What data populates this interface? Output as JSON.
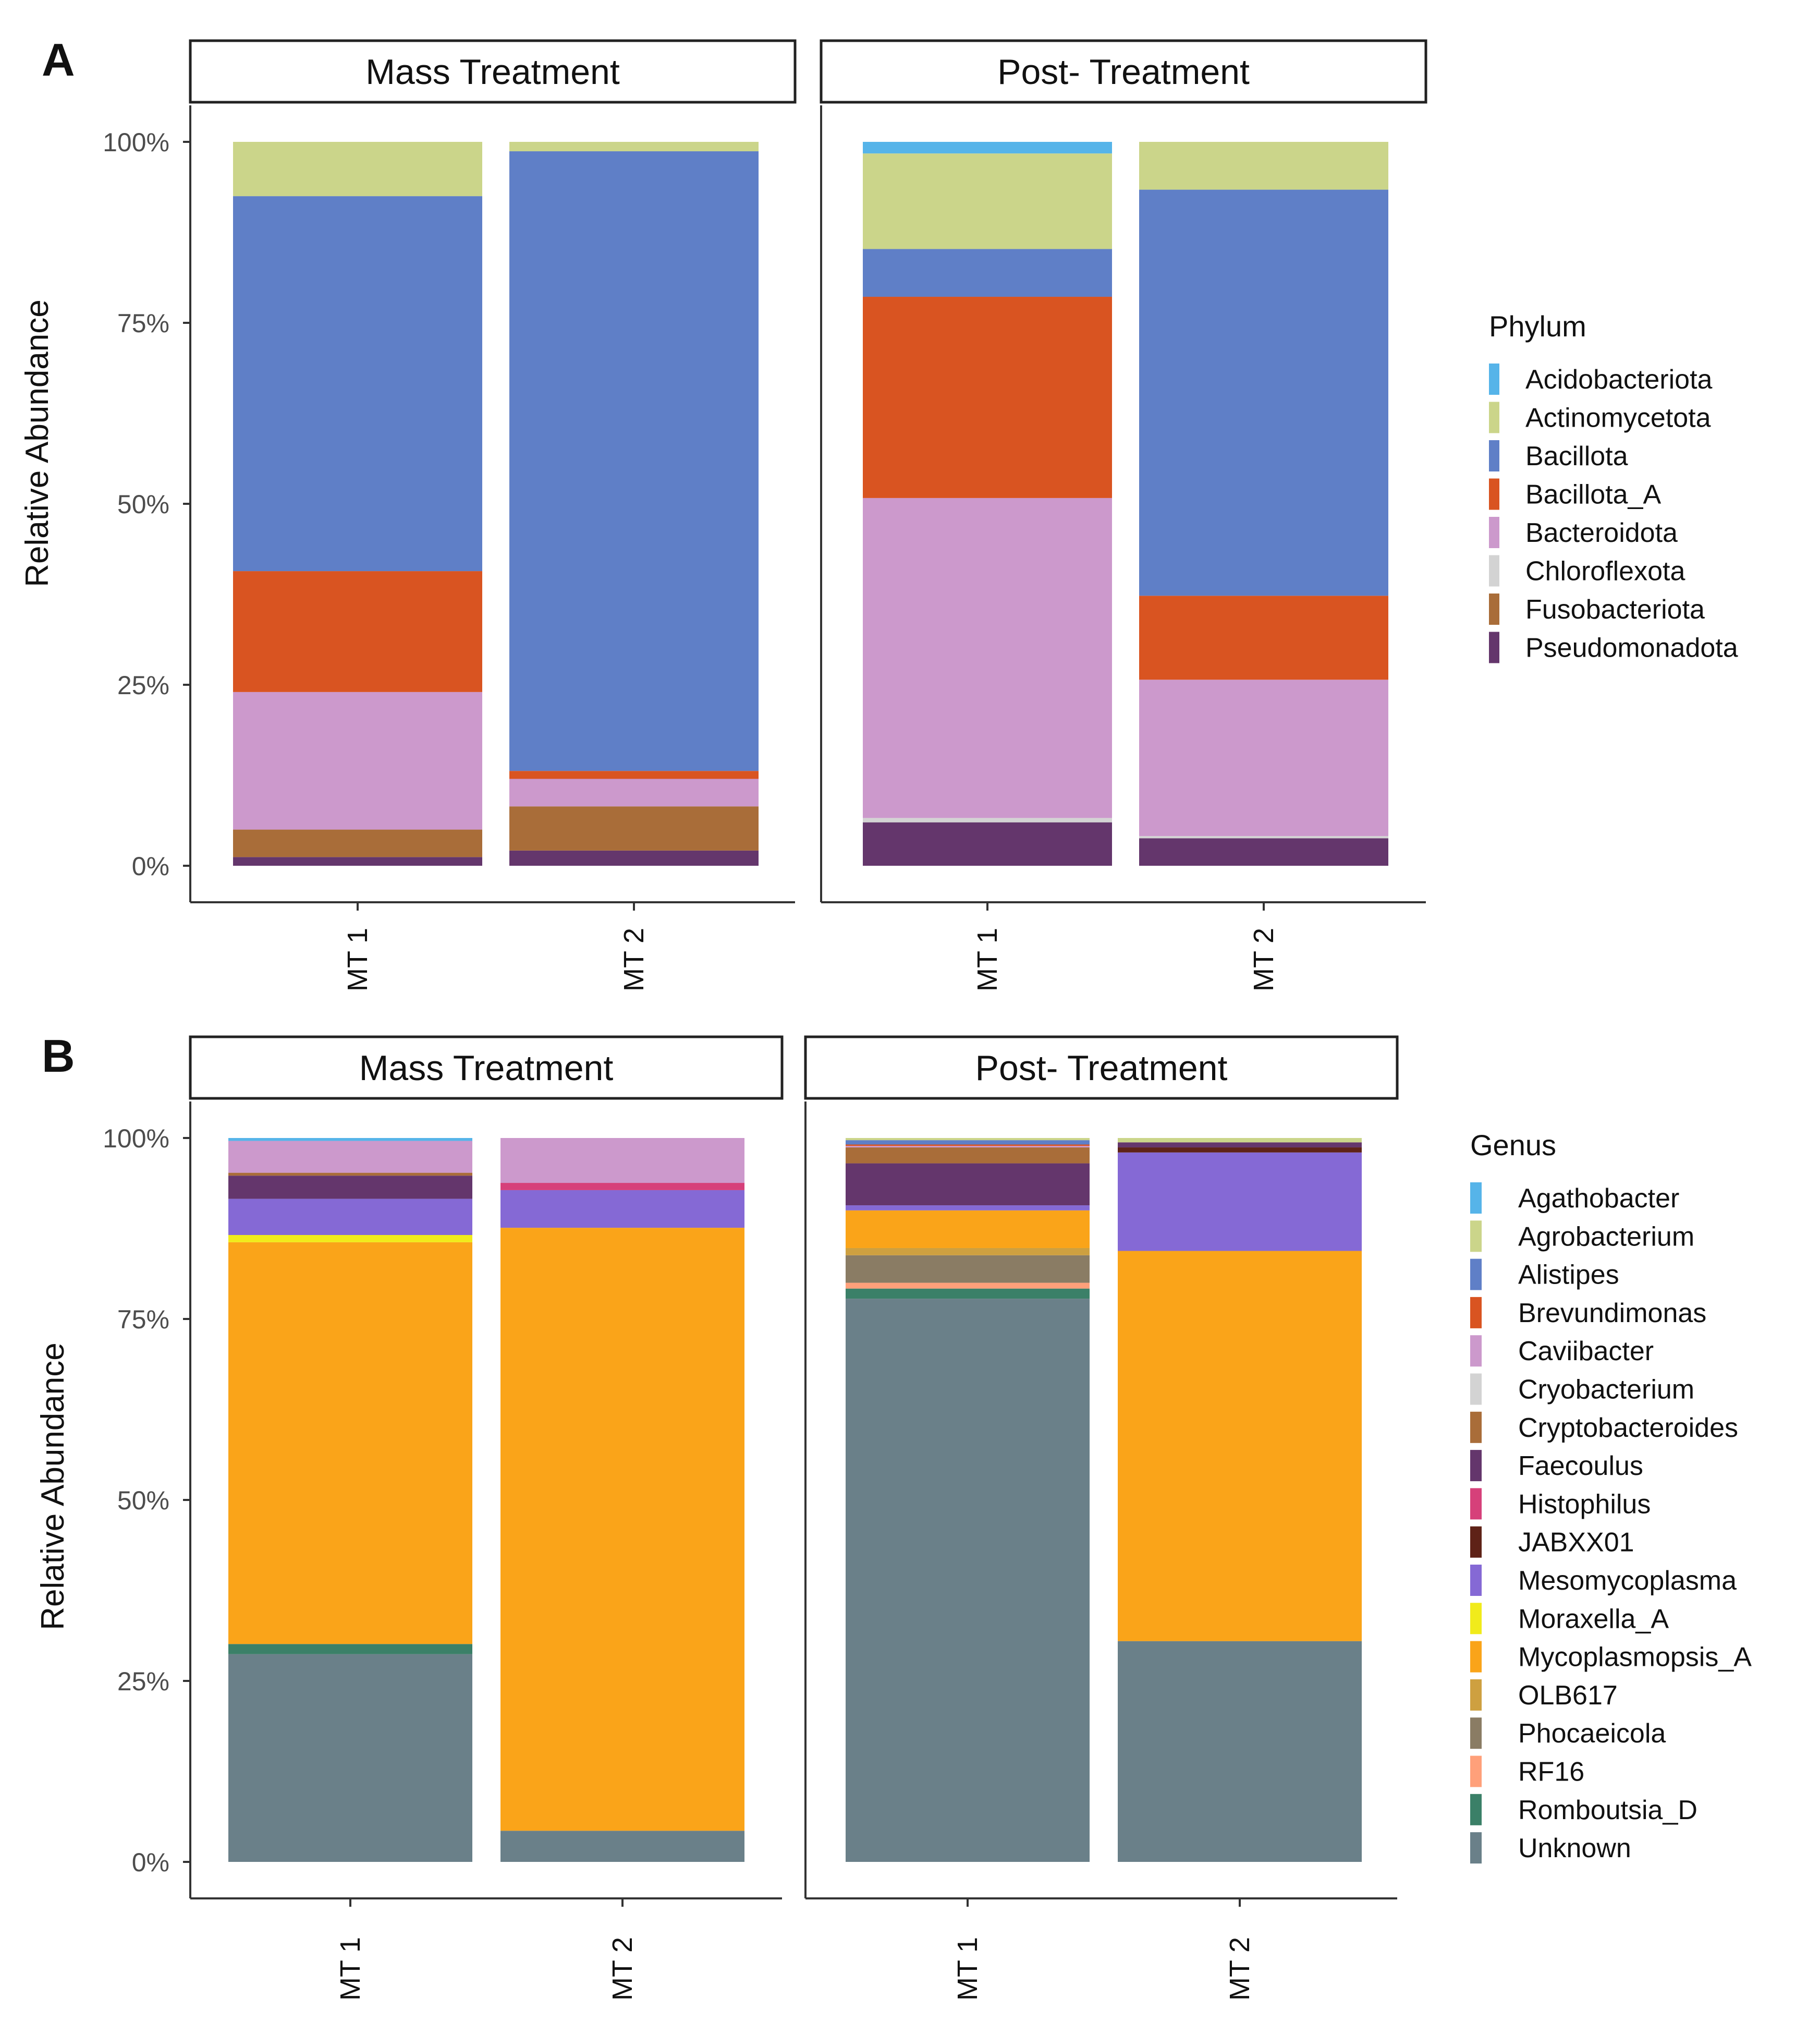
{
  "chart_data": [
    {
      "type": "bar",
      "stacked": true,
      "panel_label": "A",
      "ylabel": "Relative Abundance",
      "y_ticks": [
        "0%",
        "25%",
        "50%",
        "75%",
        "100%"
      ],
      "ylim": [
        0,
        100
      ],
      "legend_title": "Phylum",
      "legend_position": "right",
      "legend": [
        {
          "name": "Acidobacteriota",
          "color": "#56B4E9"
        },
        {
          "name": "Actinomycetota",
          "color": "#CBD58A"
        },
        {
          "name": "Bacillota",
          "color": "#5F7FC7"
        },
        {
          "name": "Bacillota_A",
          "color": "#D95421"
        },
        {
          "name": "Bacteroidota",
          "color": "#CC99CC"
        },
        {
          "name": "Chloroflexota",
          "color": "#D3D3D3"
        },
        {
          "name": "Fusobacteriota",
          "color": "#A96D39"
        },
        {
          "name": "Pseudomonadota",
          "color": "#64366C"
        }
      ],
      "facets": [
        {
          "label": "Mass Treatment",
          "categories": [
            "MT 1",
            "MT 2"
          ],
          "stacks": [
            {
              "Acidobacteriota": 0,
              "Actinomycetota": 7.5,
              "Bacillota": 51.8,
              "Bacillota_A": 16.7,
              "Bacteroidota": 19,
              "Chloroflexota": 0,
              "Fusobacteriota": 3.8,
              "Pseudomonadota": 1.2
            },
            {
              "Acidobacteriota": 0,
              "Actinomycetota": 1.3,
              "Bacillota": 85.6,
              "Bacillota_A": 1.1,
              "Bacteroidota": 3.8,
              "Chloroflexota": 0,
              "Fusobacteriota": 6.1,
              "Pseudomonadota": 2.1
            }
          ]
        },
        {
          "label": "Post- Treatment",
          "categories": [
            "MT 1",
            "MT 2"
          ],
          "stacks": [
            {
              "Acidobacteriota": 1.6,
              "Actinomycetota": 13.2,
              "Bacillota": 6.6,
              "Bacillota_A": 27.8,
              "Bacteroidota": 44.2,
              "Chloroflexota": 0.6,
              "Fusobacteriota": 0,
              "Pseudomonadota": 6
            },
            {
              "Acidobacteriota": 0,
              "Actinomycetota": 6.6,
              "Bacillota": 56.1,
              "Bacillota_A": 11.6,
              "Bacteroidota": 21.6,
              "Chloroflexota": 0.3,
              "Fusobacteriota": 0,
              "Pseudomonadota": 3.8
            }
          ]
        }
      ]
    },
    {
      "type": "bar",
      "stacked": true,
      "panel_label": "B",
      "ylabel": "Relative Abundance",
      "y_ticks": [
        "0%",
        "25%",
        "50%",
        "75%",
        "100%"
      ],
      "ylim": [
        0,
        100
      ],
      "legend_title": "Genus",
      "legend_position": "right",
      "legend": [
        {
          "name": "Agathobacter",
          "color": "#56B4E9"
        },
        {
          "name": "Agrobacterium",
          "color": "#CBD58A"
        },
        {
          "name": "Alistipes",
          "color": "#5F7FC7"
        },
        {
          "name": "Brevundimonas",
          "color": "#D95421"
        },
        {
          "name": "Caviibacter",
          "color": "#CC99CC"
        },
        {
          "name": "Cryobacterium",
          "color": "#D3D3D3"
        },
        {
          "name": "Cryptobacteroides",
          "color": "#A96D39"
        },
        {
          "name": "Faecoulus",
          "color": "#64366C"
        },
        {
          "name": "Histophilus",
          "color": "#D6407A"
        },
        {
          "name": "JABXX01",
          "color": "#5E2217"
        },
        {
          "name": "Mesomycoplasma",
          "color": "#8569D5"
        },
        {
          "name": "Moraxella_A",
          "color": "#F1EB1B"
        },
        {
          "name": "Mycoplasmopsis_A",
          "color": "#FAA419"
        },
        {
          "name": "OLB617",
          "color": "#CEA040"
        },
        {
          "name": "Phocaeicola",
          "color": "#8A7C64"
        },
        {
          "name": "RF16",
          "color": "#FFA07A"
        },
        {
          "name": "Romboutsia_D",
          "color": "#3B8068"
        },
        {
          "name": "Unknown",
          "color": "#6A8089"
        }
      ],
      "facets": [
        {
          "label": "Mass Treatment",
          "categories": [
            "MT 1",
            "MT 2"
          ],
          "stacks": [
            {
              "Agathobacter": 0.4,
              "Agrobacterium": 0,
              "Alistipes": 0,
              "Brevundimonas": 0,
              "Caviibacter": 4.4,
              "Cryobacterium": 0,
              "Cryptobacteroides": 0.4,
              "Faecoulus": 3.2,
              "Histophilus": 0,
              "JABXX01": 0,
              "Mesomycoplasma": 5,
              "Moraxella_A": 1,
              "Mycoplasmopsis_A": 55.5,
              "OLB617": 0,
              "Phocaeicola": 0,
              "RF16": 0,
              "Romboutsia_D": 1.4,
              "Unknown": 28.7
            },
            {
              "Agathobacter": 0,
              "Agrobacterium": 0,
              "Alistipes": 0,
              "Brevundimonas": 0,
              "Caviibacter": 6.2,
              "Cryobacterium": 0,
              "Cryptobacteroides": 0,
              "Faecoulus": 0,
              "Histophilus": 1,
              "JABXX01": 0,
              "Mesomycoplasma": 5.2,
              "Moraxella_A": 0,
              "Mycoplasmopsis_A": 83.3,
              "OLB617": 0,
              "Phocaeicola": 0,
              "RF16": 0,
              "Romboutsia_D": 0,
              "Unknown": 4.3
            }
          ]
        },
        {
          "label": "Post- Treatment",
          "categories": [
            "MT 1",
            "MT 2"
          ],
          "stacks": [
            {
              "Agathobacter": 0,
              "Agrobacterium": 0.3,
              "Alistipes": 0.6,
              "Brevundimonas": 0.2,
              "Caviibacter": 0.2,
              "Cryobacterium": 0,
              "Cryptobacteroides": 2.2,
              "Faecoulus": 5.8,
              "Histophilus": 0,
              "JABXX01": 0,
              "Mesomycoplasma": 0.7,
              "Moraxella_A": 0,
              "Mycoplasmopsis_A": 5.2,
              "OLB617": 1,
              "Phocaeicola": 3.8,
              "RF16": 0.8,
              "Romboutsia_D": 1.4,
              "Unknown": 77.8
            },
            {
              "Agathobacter": 0,
              "Agrobacterium": 0.6,
              "Alistipes": 0,
              "Brevundimonas": 0,
              "Caviibacter": 0,
              "Cryobacterium": 0,
              "Cryptobacteroides": 0,
              "Faecoulus": 0.7,
              "Histophilus": 0,
              "JABXX01": 0.7,
              "Mesomycoplasma": 13.6,
              "Moraxella_A": 0,
              "Mycoplasmopsis_A": 53.9,
              "OLB617": 0,
              "Phocaeicola": 0,
              "RF16": 0,
              "Romboutsia_D": 0,
              "Unknown": 30.5
            }
          ]
        }
      ]
    }
  ]
}
